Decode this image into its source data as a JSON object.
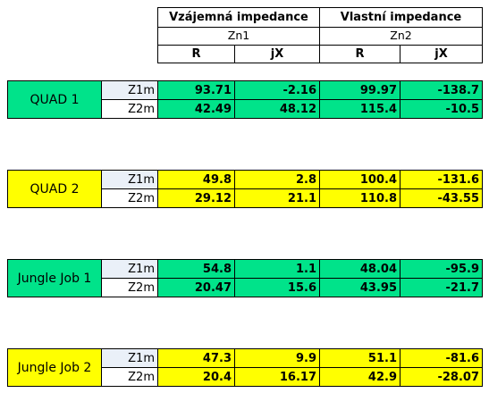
{
  "header": {
    "mutual": "Vzájemná impedance",
    "own": "Vlastní impedance",
    "zn1": "Zn1",
    "zn2": "Zn2",
    "cols": [
      "R",
      "jX",
      "R",
      "jX"
    ]
  },
  "colors": {
    "green": "#00e38a",
    "yellow": "#ffff00"
  },
  "groups": [
    {
      "name": "QUAD 1",
      "color": "green",
      "rows": [
        {
          "label": "Z1m",
          "values": [
            "93.71",
            "-2.16",
            "99.97",
            "-138.7"
          ]
        },
        {
          "label": "Z2m",
          "values": [
            "42.49",
            "48.12",
            "115.4",
            "-10.5"
          ]
        }
      ]
    },
    {
      "name": "QUAD 2",
      "color": "yellow",
      "rows": [
        {
          "label": "Z1m",
          "values": [
            "49.8",
            "2.8",
            "100.4",
            "-131.6"
          ]
        },
        {
          "label": "Z2m",
          "values": [
            "29.12",
            "21.1",
            "110.8",
            "-43.55"
          ]
        }
      ]
    },
    {
      "name": "Jungle Job 1",
      "color": "green",
      "rows": [
        {
          "label": "Z1m",
          "values": [
            "54.8",
            "1.1",
            "48.04",
            "-95.9"
          ]
        },
        {
          "label": "Z2m",
          "values": [
            "20.47",
            "15.6",
            "43.95",
            "-21.7"
          ]
        }
      ]
    },
    {
      "name": "Jungle Job 2",
      "color": "yellow",
      "rows": [
        {
          "label": "Z1m",
          "values": [
            "47.3",
            "9.9",
            "51.1",
            "-81.6"
          ]
        },
        {
          "label": "Z2m",
          "values": [
            "20.4",
            "16.17",
            "42.9",
            "-28.07"
          ]
        }
      ]
    }
  ]
}
